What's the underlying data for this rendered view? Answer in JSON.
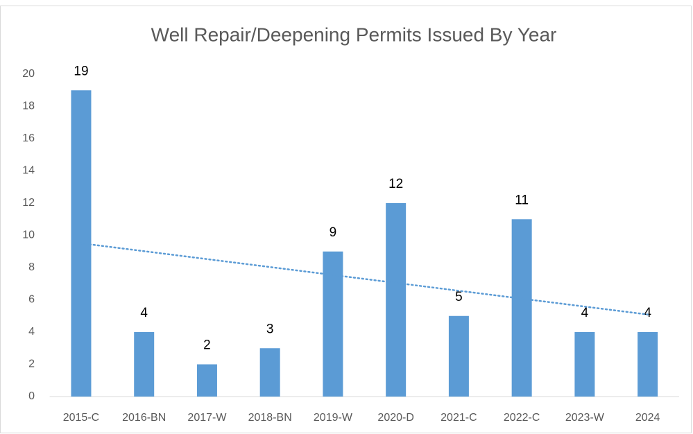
{
  "chart_data": {
    "type": "bar",
    "title": "Well Repair/Deepening Permits Issued By Year",
    "categories": [
      "2015-C",
      "2016-BN",
      "2017-W",
      "2018-BN",
      "2019-W",
      "2020-D",
      "2021-C",
      "2022-C",
      "2023-W",
      "2024"
    ],
    "values": [
      19,
      4,
      2,
      3,
      9,
      12,
      5,
      11,
      4,
      4
    ],
    "color": "#5b9bd5",
    "ylim": [
      0,
      20
    ],
    "yticks": [
      0,
      2,
      4,
      6,
      8,
      10,
      12,
      14,
      16,
      18,
      20
    ],
    "grid": false,
    "trendline": "linear",
    "trendline_color": "#5b9bd5"
  }
}
